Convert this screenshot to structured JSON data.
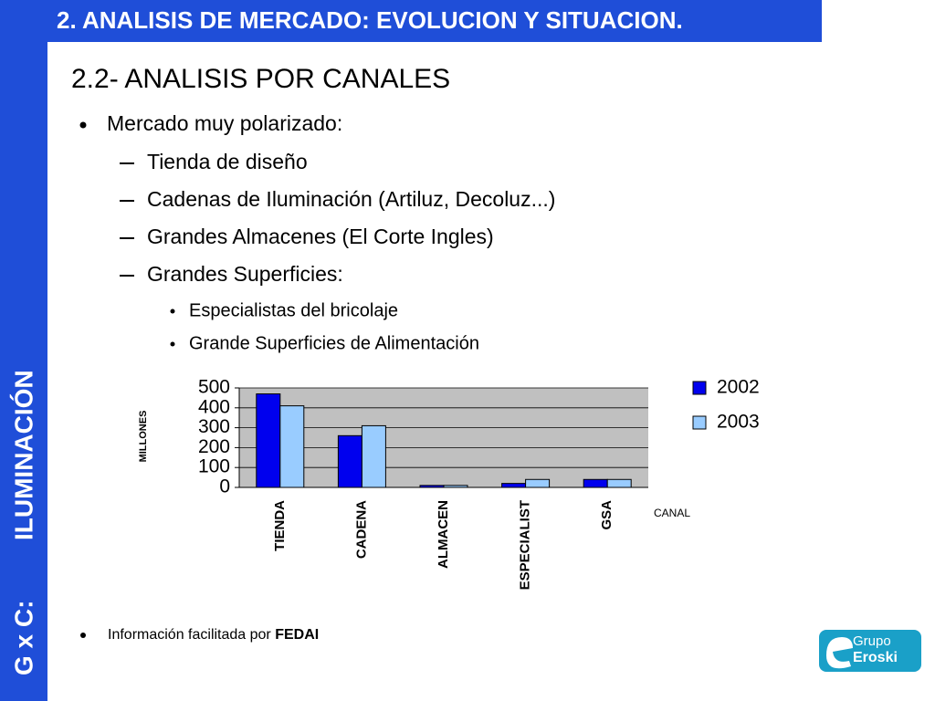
{
  "sidebar": {
    "line1": "G x C:",
    "line2": "ILUMINACIÓN"
  },
  "header": {
    "title": "2. ANALISIS DE MERCADO: EVOLUCION Y SITUACION."
  },
  "subtitle": "2.2- ANALISIS POR CANALES",
  "bullets": {
    "main": "Mercado muy polarizado:",
    "level2": [
      "Tienda de diseño",
      "Cadenas de Iluminación (Artiluz, Decoluz...)",
      "Grandes Almacenes (El Corte Ingles)",
      "Grandes Superficies:"
    ],
    "level3": [
      "Especialistas del bricolaje",
      "Grande Superficies de Alimentación"
    ]
  },
  "footer": {
    "text": "Información facilitada por",
    "source": "FEDAI"
  },
  "logo": {
    "line1": "Grupo",
    "line2": "Eroski"
  },
  "chart_data": {
    "type": "bar",
    "ylabel": "MILLONES",
    "xlabel": "CANAL",
    "categories": [
      "TIENDA",
      "CADENA",
      "ALMACEN",
      "ESPECIALIST",
      "GSA"
    ],
    "series": [
      {
        "name": "2002",
        "color": "#0000ee",
        "values": [
          470,
          260,
          10,
          20,
          40
        ]
      },
      {
        "name": "2003",
        "color": "#99ccff",
        "values": [
          410,
          310,
          10,
          40,
          40
        ]
      }
    ],
    "ylim": [
      0,
      500
    ],
    "yticks": [
      0,
      100,
      200,
      300,
      400,
      500
    ],
    "grid": true,
    "legend": "right"
  }
}
